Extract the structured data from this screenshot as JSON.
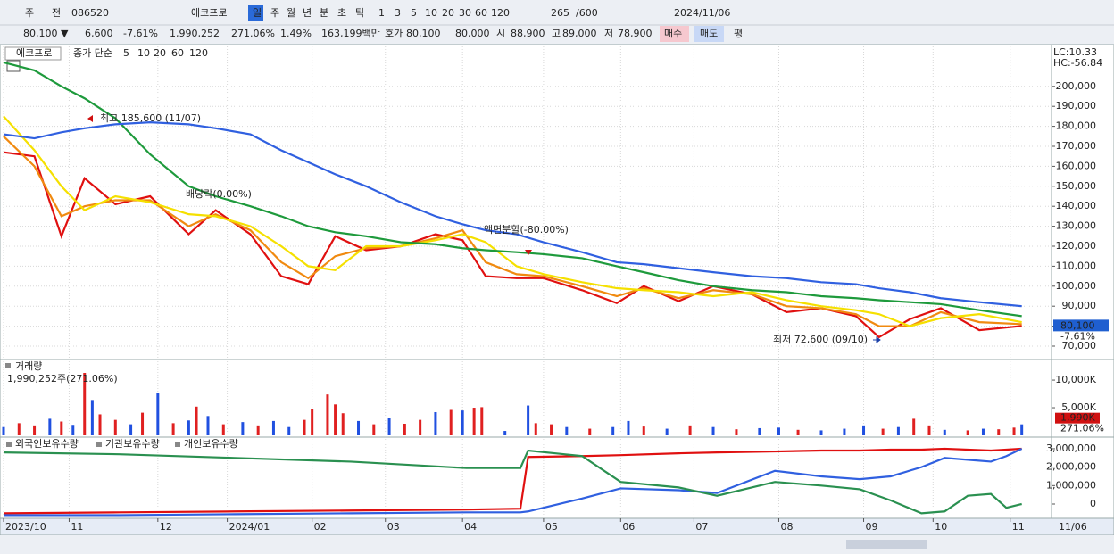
{
  "toolbar": {
    "row1": [
      "주",
      "전",
      "086520",
      "에코프로",
      "일",
      "주",
      "월",
      "년",
      "분",
      "초",
      "틱",
      "1",
      "3",
      "5",
      "10",
      "20",
      "30",
      "60",
      "120",
      "265",
      "/600",
      "2024/11/06"
    ],
    "row2": [
      "80,100 ▼",
      "6,600",
      "-7.61%",
      "1,990,252",
      "271.06%",
      "1.49%",
      "163,199백만",
      "호가",
      "80,100",
      "80,000",
      "시",
      "88,900",
      "고",
      "89,000",
      "저",
      "78,900",
      "매수",
      "매도",
      "평"
    ]
  },
  "chart_data": [
    {
      "type": "line",
      "legend_title": "에코프로",
      "legend_label": "종가 단순",
      "lc_label": "LC:10.33",
      "hc_label": "HC:-56.84",
      "last_label": "80,100",
      "last_change_label": "-7.61%",
      "end_date_label": "11/06",
      "annotations": [
        "최고 185,600 (11/07)",
        "배당락(0.00%)",
        "액면분할(-80.00%)",
        "최저 72,600 (09/10)"
      ],
      "x": [
        0,
        8,
        15,
        21,
        29,
        38,
        48,
        55,
        64,
        72,
        79,
        86,
        94,
        103,
        112,
        119,
        125,
        133,
        140,
        150,
        159,
        166,
        175,
        184,
        194,
        203,
        212,
        221,
        227,
        235,
        243,
        253,
        264
      ],
      "xlim": [
        0,
        265
      ],
      "xticks": [
        {
          "value": 0,
          "label": "2023/10"
        },
        {
          "value": 17,
          "label": "11"
        },
        {
          "value": 40,
          "label": "12"
        },
        {
          "value": 58,
          "label": "2024/01"
        },
        {
          "value": 80,
          "label": "02"
        },
        {
          "value": 99,
          "label": "03"
        },
        {
          "value": 119,
          "label": "04"
        },
        {
          "value": 140,
          "label": "05"
        },
        {
          "value": 160,
          "label": "06"
        },
        {
          "value": 179,
          "label": "07"
        },
        {
          "value": 201,
          "label": "08"
        },
        {
          "value": 223,
          "label": "09"
        },
        {
          "value": 241,
          "label": "10"
        },
        {
          "value": 261,
          "label": "11"
        }
      ],
      "ylim": [
        63300,
        220000
      ],
      "yticks": [
        {
          "value": 70000,
          "label": "70,000"
        },
        {
          "value": 80000,
          "label": "80,000"
        },
        {
          "value": 90000,
          "label": "90,000"
        },
        {
          "value": 100000,
          "label": "100,000"
        },
        {
          "value": 110000,
          "label": "110,000"
        },
        {
          "value": 120000,
          "label": "120,000"
        },
        {
          "value": 130000,
          "label": "130,000"
        },
        {
          "value": 140000,
          "label": "140,000"
        },
        {
          "value": 150000,
          "label": "150,000"
        },
        {
          "value": 160000,
          "label": "160,000"
        },
        {
          "value": 170000,
          "label": "170,000"
        },
        {
          "value": 180000,
          "label": "180,000"
        },
        {
          "value": 190000,
          "label": "190,000"
        },
        {
          "value": 200000,
          "label": "200,000"
        }
      ],
      "grid": true,
      "series": [
        {
          "name": "5",
          "color": "#e01010",
          "values": [
            167000,
            165000,
            125000,
            154000,
            141000,
            145000,
            126000,
            138000,
            126000,
            105000,
            101000,
            125000,
            118000,
            120000,
            126000,
            123000,
            105000,
            104000,
            104000,
            98000,
            91500,
            100000,
            92500,
            100000,
            96000,
            87000,
            89000,
            85000,
            74500,
            83500,
            89000,
            78000,
            80100
          ]
        },
        {
          "name": "10",
          "color": "#f08a10",
          "values": [
            175000,
            160000,
            135000,
            140000,
            143000,
            143000,
            130000,
            136000,
            128000,
            112000,
            104000,
            115000,
            119000,
            120000,
            124000,
            128000,
            112000,
            106000,
            105000,
            100000,
            95000,
            99000,
            94000,
            98000,
            96000,
            90000,
            89000,
            86000,
            80000,
            80000,
            87000,
            82000,
            81000
          ]
        },
        {
          "name": "20",
          "color": "#f5e000",
          "values": [
            185000,
            168000,
            150000,
            138000,
            145000,
            142000,
            136000,
            135000,
            130000,
            120000,
            110000,
            108000,
            120000,
            120000,
            123000,
            126000,
            122000,
            110000,
            106000,
            102000,
            99000,
            98000,
            97000,
            95000,
            97000,
            93000,
            90000,
            88000,
            86000,
            80000,
            84000,
            86000,
            82000
          ]
        },
        {
          "name": "60",
          "color": "#1e9a3c",
          "values": [
            212000,
            208000,
            200000,
            194000,
            184000,
            166000,
            150000,
            145000,
            140000,
            135000,
            130000,
            127000,
            125000,
            122000,
            121000,
            119000,
            118000,
            117000,
            116000,
            114000,
            110000,
            107000,
            103000,
            100000,
            98000,
            97000,
            95000,
            94000,
            93000,
            92000,
            91000,
            88000,
            85000
          ]
        },
        {
          "name": "120",
          "color": "#3060e0",
          "values": [
            176000,
            174000,
            177000,
            179000,
            181000,
            182000,
            181000,
            179000,
            176000,
            168000,
            162000,
            156000,
            150000,
            142000,
            135000,
            131000,
            128000,
            126000,
            122000,
            117000,
            112000,
            111000,
            109000,
            107000,
            105000,
            104000,
            102000,
            101000,
            99000,
            97000,
            94000,
            92000,
            90000
          ]
        }
      ]
    },
    {
      "type": "bar",
      "title": "거래량",
      "subtitle": "1,990,252주(271.06%)",
      "last_label": "1,990K",
      "last_change_label": "271.06%",
      "x": [
        0,
        4,
        8,
        12,
        15,
        18,
        21,
        23,
        25,
        29,
        33,
        36,
        40,
        44,
        48,
        50,
        53,
        57,
        62,
        66,
        70,
        74,
        78,
        80,
        84,
        86,
        88,
        92,
        96,
        100,
        104,
        108,
        112,
        116,
        119,
        122,
        124,
        130,
        136,
        138,
        142,
        146,
        152,
        158,
        162,
        166,
        172,
        178,
        184,
        190,
        196,
        201,
        206,
        212,
        218,
        223,
        228,
        232,
        236,
        240,
        244,
        250,
        254,
        258,
        262,
        264
      ],
      "values": [
        1500,
        2200,
        1800,
        3000,
        2500,
        1900,
        11300,
        6400,
        3800,
        2800,
        2000,
        4100,
        7700,
        2200,
        2700,
        5200,
        3500,
        2000,
        2400,
        1800,
        2600,
        1500,
        2800,
        4800,
        7400,
        5600,
        4000,
        2600,
        2000,
        3200,
        2100,
        2800,
        4200,
        4600,
        4500,
        5000,
        5100,
        800,
        5400,
        2200,
        2000,
        1500,
        1200,
        1500,
        2600,
        1600,
        1200,
        1800,
        1500,
        1100,
        1300,
        1400,
        1000,
        900,
        1200,
        1800,
        1200,
        1500,
        3000,
        1800,
        1000,
        900,
        1200,
        1100,
        1400,
        1990
      ],
      "bar_colors": [
        "#2050e0",
        "#e02020",
        "#e02020",
        "#2050e0",
        "#e02020",
        "#2050e0",
        "#e02020",
        "#2050e0",
        "#e02020",
        "#e02020",
        "#2050e0",
        "#e02020",
        "#2050e0",
        "#e02020",
        "#2050e0",
        "#e02020",
        "#2050e0",
        "#e02020",
        "#2050e0",
        "#e02020",
        "#2050e0",
        "#2050e0",
        "#e02020",
        "#e02020",
        "#e02020",
        "#e02020",
        "#e02020",
        "#2050e0",
        "#e02020",
        "#2050e0",
        "#e02020",
        "#e02020",
        "#2050e0",
        "#e02020",
        "#2050e0",
        "#e02020",
        "#e02020",
        "#2050e0",
        "#2050e0",
        "#e02020",
        "#e02020",
        "#2050e0",
        "#e02020",
        "#2050e0",
        "#2050e0",
        "#e02020",
        "#2050e0",
        "#e02020",
        "#2050e0",
        "#e02020",
        "#2050e0",
        "#2050e0",
        "#e02020",
        "#2050e0",
        "#2050e0",
        "#2050e0",
        "#e02020",
        "#2050e0",
        "#e02020",
        "#e02020",
        "#2050e0",
        "#e02020",
        "#2050e0",
        "#e02020",
        "#e02020",
        "#2050e0"
      ],
      "xlim": [
        0,
        265
      ],
      "ylim": [
        0,
        13400
      ],
      "yticks": [
        {
          "value": 5000,
          "label": "5,000K"
        },
        {
          "value": 10000,
          "label": "10,000K"
        }
      ]
    },
    {
      "type": "line",
      "x": [
        0,
        30,
        60,
        90,
        120,
        134,
        136,
        150,
        160,
        175,
        185,
        200,
        212,
        222,
        230,
        238,
        244,
        250,
        256,
        260,
        264
      ],
      "xlim": [
        0,
        265
      ],
      "ylim": [
        -725000,
        3530000
      ],
      "yticks": [
        0,
        {
          "value": 1000000,
          "label": "1,000,000"
        },
        {
          "value": 2000000,
          "label": "2,000,000"
        },
        {
          "value": 3000000,
          "label": "3,000,000"
        }
      ],
      "series": [
        {
          "name": "외국인보유수량",
          "color": "#e01010",
          "values": [
            -500000,
            -450000,
            -400000,
            -350000,
            -300000,
            -250000,
            2550000,
            2600000,
            2650000,
            2750000,
            2800000,
            2850000,
            2900000,
            2900000,
            2950000,
            2950000,
            3000000,
            2950000,
            2900000,
            2950000,
            3000000
          ]
        },
        {
          "name": "기관보유수량",
          "color": "#3060e0",
          "values": [
            -600000,
            -600000,
            -550000,
            -500000,
            -450000,
            -450000,
            -400000,
            300000,
            850000,
            750000,
            600000,
            1800000,
            1500000,
            1350000,
            1500000,
            2000000,
            2500000,
            2400000,
            2300000,
            2600000,
            3000000
          ]
        },
        {
          "name": "개인보유수량",
          "color": "#2a9050",
          "values": [
            2800000,
            2700000,
            2500000,
            2300000,
            1950000,
            1950000,
            2900000,
            2600000,
            1200000,
            900000,
            450000,
            1200000,
            1000000,
            800000,
            200000,
            -500000,
            -400000,
            450000,
            550000,
            -200000,
            0
          ]
        }
      ]
    }
  ]
}
